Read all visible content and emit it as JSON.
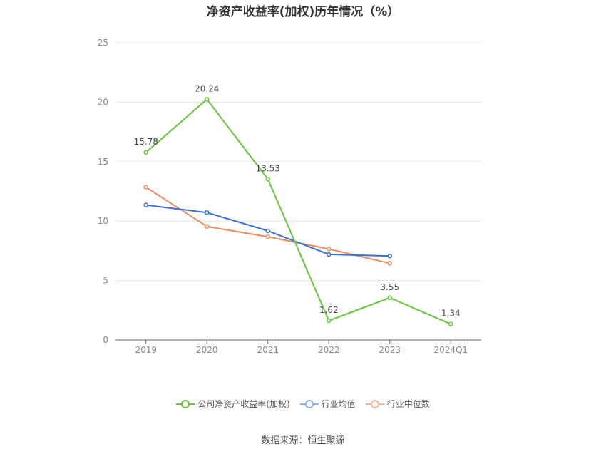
{
  "chart_data": {
    "type": "line",
    "title": "净资产收益率(加权)历年情况（%）",
    "categories": [
      "2019",
      "2020",
      "2021",
      "2022",
      "2023",
      "2024Q1"
    ],
    "ylim": [
      0,
      25
    ],
    "yticks": [
      0,
      5,
      10,
      15,
      20,
      25
    ],
    "grid": true,
    "legend_position": "bottom",
    "series": [
      {
        "name": "公司净资产收益率(加权)",
        "color": "#66c43a",
        "values": [
          15.78,
          20.24,
          13.53,
          1.62,
          3.55,
          1.34
        ],
        "labels": [
          "15.78",
          "20.24",
          "13.53",
          "1.62",
          "3.55",
          "1.34"
        ]
      },
      {
        "name": "行业均值",
        "color": "#3a6fd8",
        "values": [
          11.35,
          10.72,
          9.18,
          7.2,
          7.06,
          null
        ]
      },
      {
        "name": "行业中位数",
        "color": "#f08a5d",
        "values": [
          12.85,
          9.55,
          8.68,
          7.65,
          6.45,
          null
        ]
      }
    ]
  },
  "legend": {
    "items": [
      {
        "label": "公司净资产收益率(加权)",
        "color": "#66c43a"
      },
      {
        "label": "行业均值",
        "color": "#8fb0e6"
      },
      {
        "label": "行业中位数",
        "color": "#f5b49a"
      }
    ]
  },
  "source": "数据来源：恒生聚源"
}
